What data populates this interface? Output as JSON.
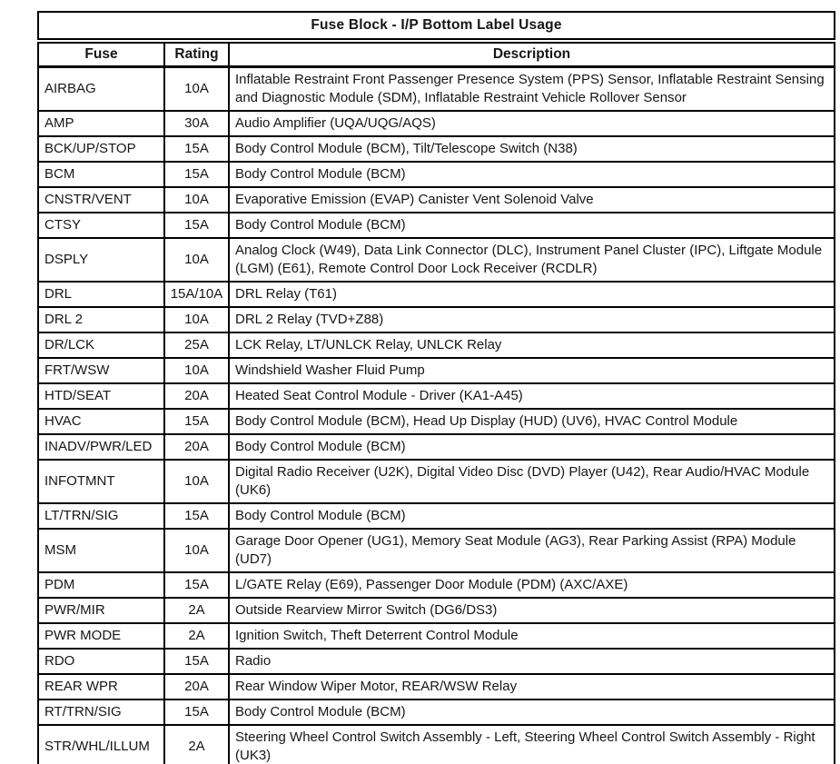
{
  "table": {
    "title": "Fuse Block - I/P Bottom Label Usage",
    "columns": [
      "Fuse",
      "Rating",
      "Description"
    ],
    "rows": [
      {
        "fuse": "AIRBAG",
        "rating": "10A",
        "description": "Inflatable Restraint Front Passenger Presence System (PPS) Sensor, Inflatable Restraint Sensing and Diagnostic Module (SDM), Inflatable Restraint Vehicle Rollover Sensor"
      },
      {
        "fuse": "AMP",
        "rating": "30A",
        "description": "Audio Amplifier (UQA/UQG/AQS)"
      },
      {
        "fuse": "BCK/UP/STOP",
        "rating": "15A",
        "description": "Body Control Module (BCM), Tilt/Telescope Switch (N38)"
      },
      {
        "fuse": "BCM",
        "rating": "15A",
        "description": "Body Control Module (BCM)"
      },
      {
        "fuse": "CNSTR/VENT",
        "rating": "10A",
        "description": "Evaporative Emission (EVAP) Canister Vent Solenoid Valve"
      },
      {
        "fuse": "CTSY",
        "rating": "15A",
        "description": "Body Control Module (BCM)"
      },
      {
        "fuse": "DSPLY",
        "rating": "10A",
        "description": "Analog Clock (W49), Data Link Connector (DLC), Instrument Panel Cluster (IPC), Liftgate Module (LGM) (E61), Remote Control Door Lock Receiver (RCDLR)"
      },
      {
        "fuse": "DRL",
        "rating": "15A/10A",
        "description": "DRL Relay (T61)"
      },
      {
        "fuse": "DRL 2",
        "rating": "10A",
        "description": "DRL 2 Relay (TVD+Z88)"
      },
      {
        "fuse": "DR/LCK",
        "rating": "25A",
        "description": "LCK Relay, LT/UNLCK Relay, UNLCK Relay"
      },
      {
        "fuse": "FRT/WSW",
        "rating": "10A",
        "description": "Windshield Washer Fluid Pump"
      },
      {
        "fuse": "HTD/SEAT",
        "rating": "20A",
        "description": "Heated Seat Control Module - Driver (KA1-A45)"
      },
      {
        "fuse": "HVAC",
        "rating": "15A",
        "description": "Body Control Module (BCM), Head Up Display (HUD) (UV6), HVAC Control Module"
      },
      {
        "fuse": "INADV/PWR/LED",
        "rating": "20A",
        "description": "Body Control Module (BCM)"
      },
      {
        "fuse": "INFOTMNT",
        "rating": "10A",
        "description": "Digital Radio Receiver (U2K), Digital Video Disc (DVD) Player (U42), Rear Audio/HVAC Module (UK6)"
      },
      {
        "fuse": "LT/TRN/SIG",
        "rating": "15A",
        "description": "Body Control Module (BCM)"
      },
      {
        "fuse": "MSM",
        "rating": "10A",
        "description": "Garage Door Opener (UG1), Memory Seat Module (AG3), Rear Parking Assist (RPA) Module (UD7)"
      },
      {
        "fuse": "PDM",
        "rating": "15A",
        "description": "L/GATE Relay (E69), Passenger Door Module (PDM) (AXC/AXE)"
      },
      {
        "fuse": "PWR/MIR",
        "rating": "2A",
        "description": "Outside Rearview Mirror Switch (DG6/DS3)"
      },
      {
        "fuse": "PWR MODE",
        "rating": "2A",
        "description": "Ignition Switch, Theft Deterrent Control Module"
      },
      {
        "fuse": "RDO",
        "rating": "15A",
        "description": "Radio"
      },
      {
        "fuse": "REAR WPR",
        "rating": "20A",
        "description": "Rear Window Wiper Motor, REAR/WSW Relay"
      },
      {
        "fuse": "RT/TRN/SIG",
        "rating": "15A",
        "description": "Body Control Module (BCM)"
      },
      {
        "fuse": "STR/WHL/ILLUM",
        "rating": "2A",
        "description": "Steering Wheel Control Switch Assembly - Left, Steering Wheel Control Switch Assembly - Right (UK3)"
      }
    ]
  }
}
